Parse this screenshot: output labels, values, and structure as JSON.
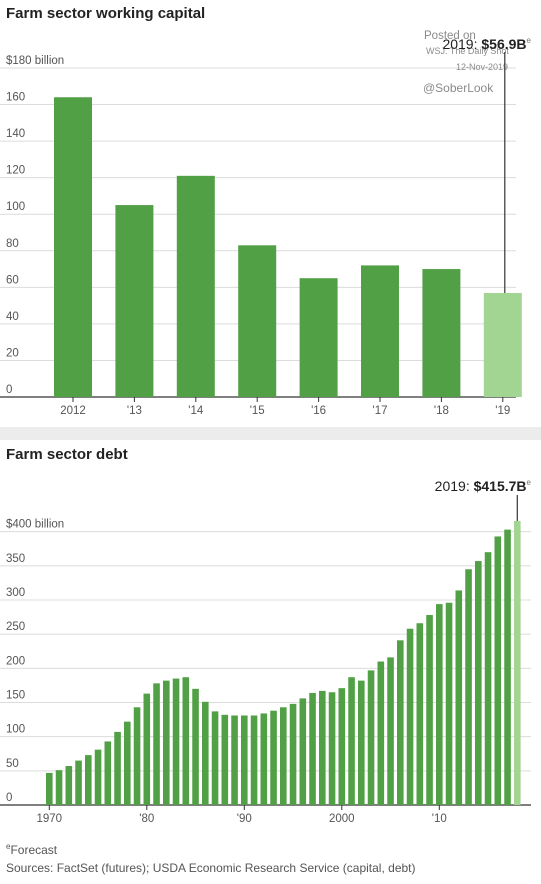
{
  "watermark": {
    "posted_on": "Posted on",
    "source": "WSJ. The Daily Shot",
    "date": "12-Nov-2019",
    "handle": "@SoberLook"
  },
  "chart_data": [
    {
      "type": "bar",
      "title": "Farm sector working capital",
      "categories": [
        "2012",
        "'13",
        "'14",
        "'15",
        "'16",
        "'17",
        "'18",
        "'19"
      ],
      "values": [
        164,
        105,
        121,
        83,
        65,
        72,
        70,
        56.9
      ],
      "forecast_index": 7,
      "ylim": [
        0,
        180
      ],
      "yticks": [
        0,
        20,
        40,
        60,
        80,
        100,
        120,
        140,
        160,
        180
      ],
      "ytick_labels": [
        "0",
        "20",
        "40",
        "60",
        "80",
        "100",
        "120",
        "140",
        "160",
        "$180 billion"
      ],
      "callout": {
        "prefix": "2019: ",
        "value": "$56.9B",
        "mark": "e"
      },
      "colors": {
        "bar": "#52a046",
        "forecast": "#a2d492"
      }
    },
    {
      "type": "bar",
      "title": "Farm sector debt",
      "x_start": 1970,
      "values": [
        47,
        51,
        57,
        65,
        73,
        81,
        93,
        107,
        122,
        143,
        163,
        178,
        182,
        185,
        187,
        170,
        151,
        137,
        132,
        131,
        131,
        131,
        134,
        138,
        143,
        148,
        156,
        164,
        167,
        165,
        171,
        187,
        182,
        197,
        210,
        216,
        241,
        258,
        266,
        278,
        294,
        296,
        314,
        345,
        357,
        370,
        393,
        403,
        415.7
      ],
      "forecast_index": 48,
      "ylim": [
        0,
        420
      ],
      "yticks": [
        0,
        50,
        100,
        150,
        200,
        250,
        300,
        350,
        400
      ],
      "ytick_labels": [
        "0",
        "50",
        "100",
        "150",
        "200",
        "250",
        "300",
        "350",
        "$400 billion"
      ],
      "xtick_years": [
        1970,
        1980,
        1990,
        2000,
        2010
      ],
      "xtick_labels": [
        "1970",
        "'80",
        "'90",
        "2000",
        "'10"
      ],
      "callout": {
        "prefix": "2019: ",
        "value": "$415.7B",
        "mark": "e"
      },
      "colors": {
        "bar": "#52a046",
        "forecast": "#a2d492"
      }
    }
  ],
  "footnote": {
    "forecast": "eForecast",
    "forecast_mark": "e",
    "forecast_text": "Forecast",
    "sources": "Sources: FactSet (futures); USDA Economic Research Service (capital, debt)"
  }
}
